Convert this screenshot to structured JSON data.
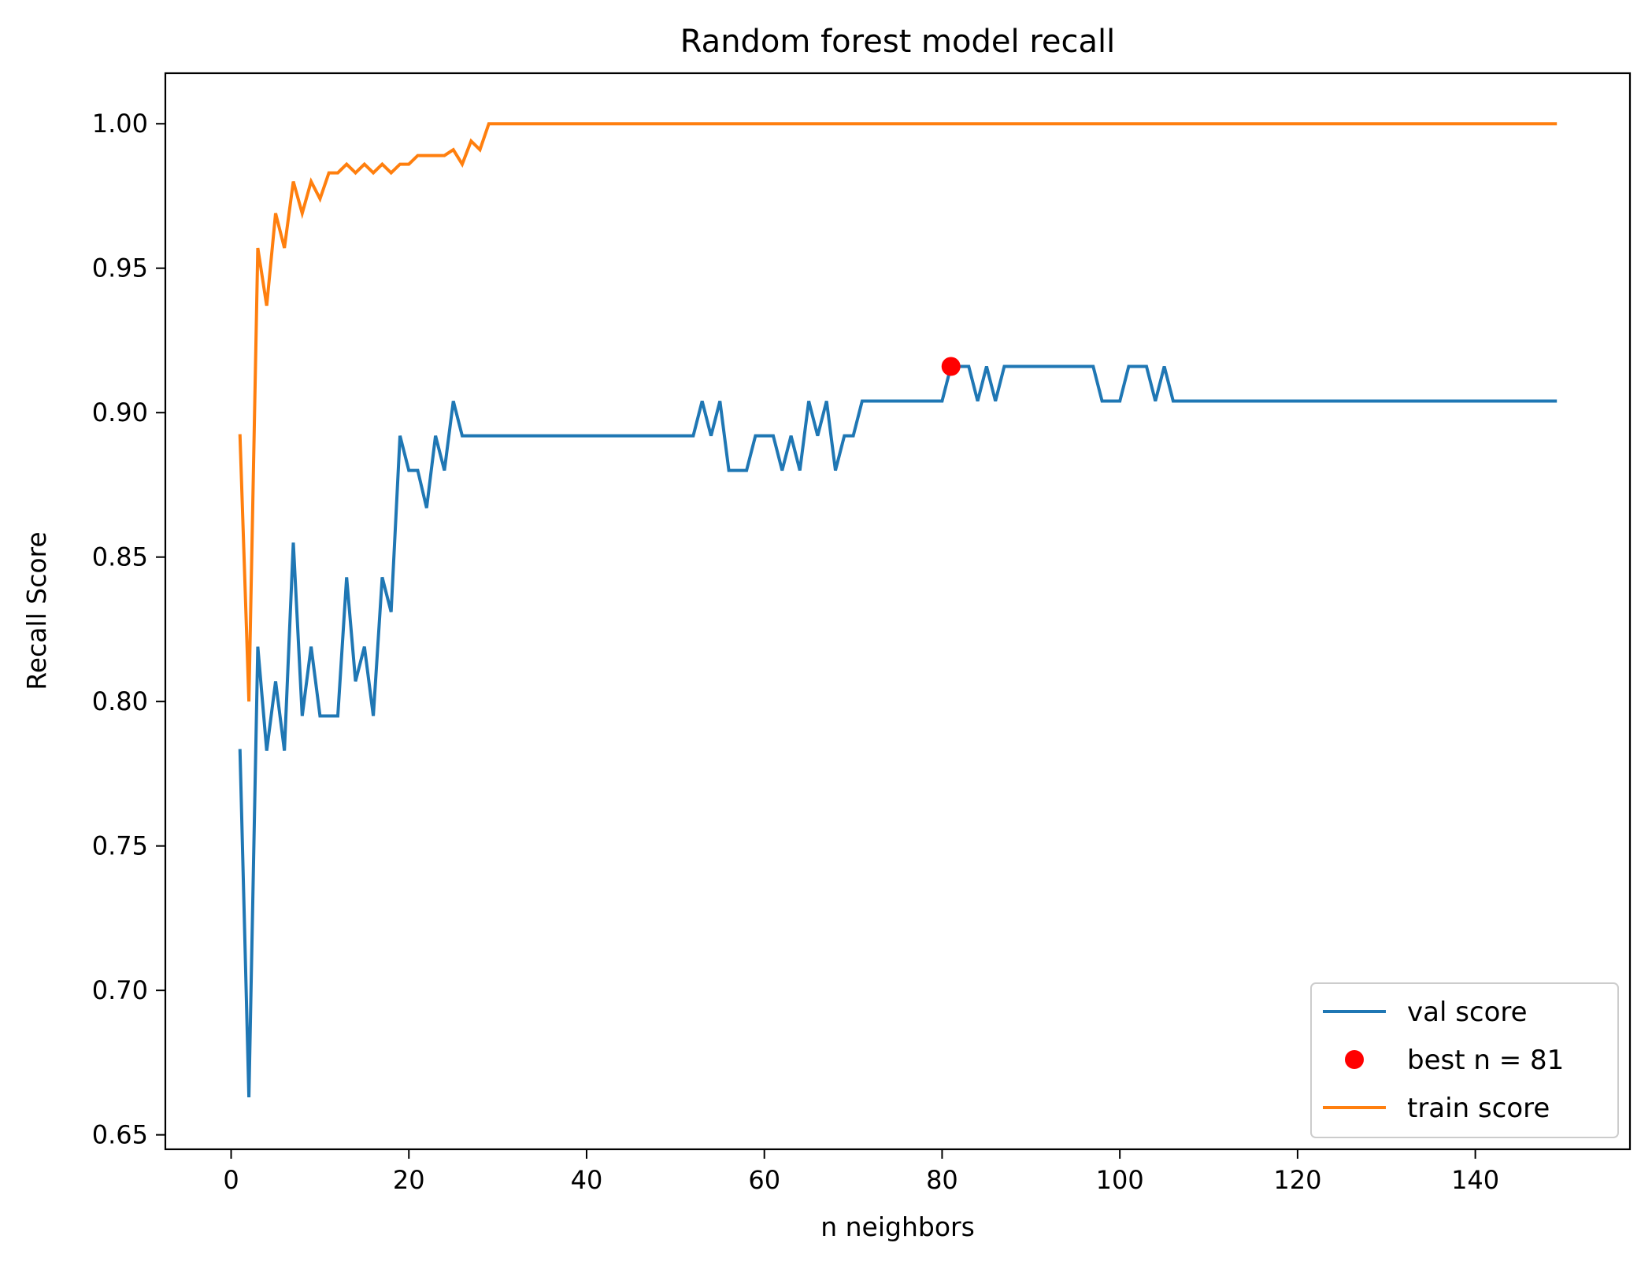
{
  "chart_data": {
    "type": "line",
    "title": "Random forest model recall",
    "xlabel": "n neighbors",
    "ylabel": "Recall Score",
    "xlim": [
      -7.4,
      157.4
    ],
    "ylim": [
      0.645,
      1.0175
    ],
    "xticks": [
      "0",
      "20",
      "40",
      "60",
      "80",
      "100",
      "120",
      "140"
    ],
    "xtick_values": [
      0,
      20,
      40,
      60,
      80,
      100,
      120,
      140
    ],
    "yticks": [
      "0.65",
      "0.70",
      "0.75",
      "0.80",
      "0.85",
      "0.90",
      "0.95",
      "1.00"
    ],
    "ytick_values": [
      0.65,
      0.7,
      0.75,
      0.8,
      0.85,
      0.9,
      0.95,
      1.0
    ],
    "grid": false,
    "legend_position": "bottom-right",
    "series": [
      {
        "name": "val score",
        "color": "#1f77b4",
        "style": "line",
        "points": [
          [
            1,
            0.783
          ],
          [
            2,
            0.663
          ],
          [
            3,
            0.819
          ],
          [
            4,
            0.783
          ],
          [
            5,
            0.807
          ],
          [
            6,
            0.783
          ],
          [
            7,
            0.855
          ],
          [
            8,
            0.795
          ],
          [
            9,
            0.819
          ],
          [
            10,
            0.795
          ],
          [
            12,
            0.795
          ],
          [
            13,
            0.843
          ],
          [
            14,
            0.807
          ],
          [
            15,
            0.819
          ],
          [
            16,
            0.795
          ],
          [
            17,
            0.843
          ],
          [
            18,
            0.831
          ],
          [
            19,
            0.892
          ],
          [
            20,
            0.88
          ],
          [
            21,
            0.88
          ],
          [
            22,
            0.867
          ],
          [
            23,
            0.892
          ],
          [
            24,
            0.88
          ],
          [
            25,
            0.904
          ],
          [
            26,
            0.892
          ],
          [
            52,
            0.892
          ],
          [
            53,
            0.904
          ],
          [
            54,
            0.892
          ],
          [
            55,
            0.904
          ],
          [
            56,
            0.88
          ],
          [
            58,
            0.88
          ],
          [
            59,
            0.892
          ],
          [
            61,
            0.892
          ],
          [
            62,
            0.88
          ],
          [
            63,
            0.892
          ],
          [
            64,
            0.88
          ],
          [
            65,
            0.904
          ],
          [
            66,
            0.892
          ],
          [
            67,
            0.904
          ],
          [
            68,
            0.88
          ],
          [
            69,
            0.892
          ],
          [
            70,
            0.892
          ],
          [
            71,
            0.904
          ],
          [
            80,
            0.904
          ],
          [
            81,
            0.916
          ],
          [
            83,
            0.916
          ],
          [
            84,
            0.904
          ],
          [
            85,
            0.916
          ],
          [
            86,
            0.904
          ],
          [
            87,
            0.916
          ],
          [
            97,
            0.916
          ],
          [
            98,
            0.904
          ],
          [
            100,
            0.904
          ],
          [
            101,
            0.916
          ],
          [
            103,
            0.916
          ],
          [
            104,
            0.904
          ],
          [
            105,
            0.916
          ],
          [
            106,
            0.904
          ],
          [
            149,
            0.904
          ]
        ]
      },
      {
        "name": "best n = 81",
        "color": "#ff0000",
        "style": "marker",
        "points": [
          [
            81,
            0.916
          ]
        ]
      },
      {
        "name": "train score",
        "color": "#ff7f0e",
        "style": "line",
        "points": [
          [
            1,
            0.892
          ],
          [
            2,
            0.8
          ],
          [
            3,
            0.957
          ],
          [
            4,
            0.937
          ],
          [
            5,
            0.969
          ],
          [
            6,
            0.957
          ],
          [
            7,
            0.98
          ],
          [
            8,
            0.969
          ],
          [
            9,
            0.98
          ],
          [
            10,
            0.974
          ],
          [
            11,
            0.983
          ],
          [
            12,
            0.983
          ],
          [
            13,
            0.986
          ],
          [
            14,
            0.983
          ],
          [
            15,
            0.986
          ],
          [
            16,
            0.983
          ],
          [
            17,
            0.986
          ],
          [
            18,
            0.983
          ],
          [
            19,
            0.986
          ],
          [
            20,
            0.986
          ],
          [
            21,
            0.989
          ],
          [
            24,
            0.989
          ],
          [
            25,
            0.991
          ],
          [
            26,
            0.986
          ],
          [
            27,
            0.994
          ],
          [
            28,
            0.991
          ],
          [
            29,
            1.0
          ],
          [
            149,
            1.0
          ]
        ]
      }
    ]
  }
}
